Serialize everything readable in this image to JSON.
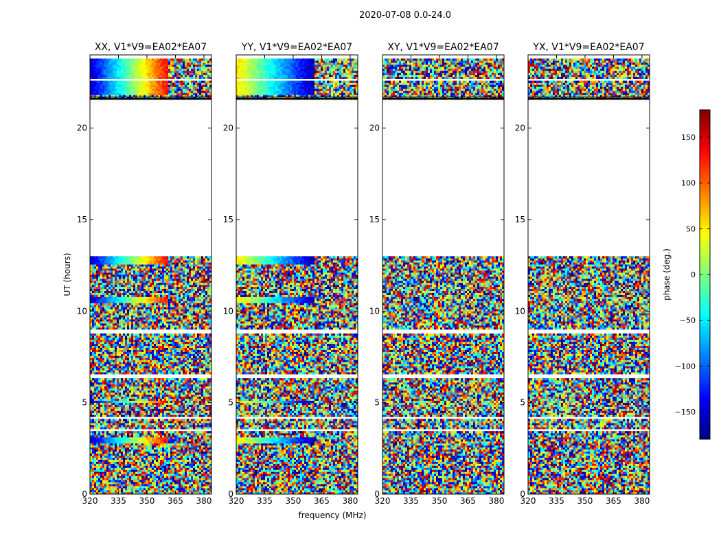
{
  "figure": {
    "suptitle": "2020-07-08 0.0-24.0",
    "xlabel": "frequency (MHz)",
    "ylabel": "UT (hours)",
    "colorbar_label": "phase (deg.)"
  },
  "chart_data": {
    "type": "heatmap",
    "x_range_mhz": [
      320,
      384
    ],
    "y_range_hours": [
      0,
      24
    ],
    "xticks": [
      "320",
      "335",
      "350",
      "365",
      "380"
    ],
    "yticks": [
      "0",
      "5",
      "10",
      "15",
      "20"
    ],
    "color_range_deg": [
      -180,
      180
    ],
    "colorbar_ticks": [
      "−150",
      "−100",
      "−50",
      "0",
      "50",
      "100",
      "150"
    ],
    "colormap": "jet",
    "panels": [
      {
        "title": "XX, V1*V9=EA02*EA07",
        "coherent_phase": true
      },
      {
        "title": "YY, V1*V9=EA02*EA07",
        "coherent_phase": true
      },
      {
        "title": "XY, V1*V9=EA02*EA07",
        "coherent_phase": false
      },
      {
        "title": "YX, V1*V9=EA02*EA07",
        "coherent_phase": false
      }
    ],
    "data_blocks_hours": [
      [
        0.0,
        13.0
      ],
      [
        21.6,
        23.8
      ]
    ],
    "empty_interval_hours": [
      13.0,
      21.6
    ]
  }
}
